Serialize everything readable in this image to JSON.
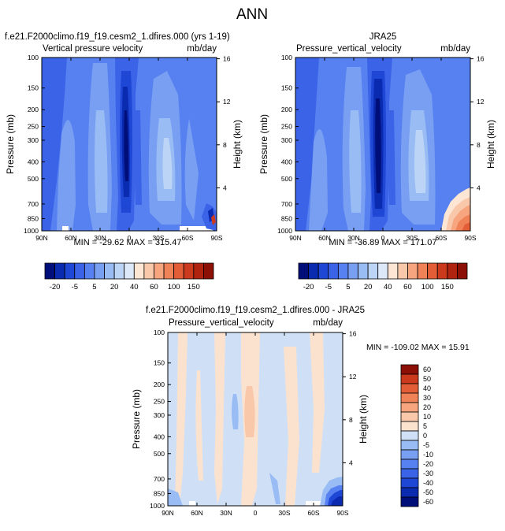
{
  "page_title": "ANN",
  "panels": {
    "p1": {
      "case_title": "f.e21.F2000climo.f19_f19.cesm2_1.dfires.000 (yrs 1-19)",
      "left_label": "Vertical pressure velocity",
      "units": "mb/day",
      "stats": "MIN = -29.62   MAX = 315.47"
    },
    "p2": {
      "case_title": "JRA25",
      "left_label": "Pressure_vertical_velocity",
      "units": "mb/day",
      "stats": "MIN = -36.89   MAX = 171.07"
    },
    "p3": {
      "case_title": "f.e21.F2000climo.f19_f19.cesm2_1.dfires.000 - JRA25",
      "left_label": "Pressure_vertical_velocity",
      "units": "mb/day",
      "stats": "MIN = -109.02   MAX =  15.91"
    }
  },
  "axis": {
    "ylabel": "Pressure (mb)",
    "y2label": "Height (km)"
  },
  "colorbars": {
    "top_labels": [
      "-20",
      "-5",
      "5",
      "20",
      "40",
      "60",
      "100",
      "150"
    ],
    "diff_labels": [
      "60",
      "50",
      "40",
      "30",
      "20",
      "10",
      "5",
      "0",
      "-5",
      "-10",
      "-20",
      "-30",
      "-40",
      "-50",
      "-60"
    ]
  },
  "chart_data": [
    {
      "type": "heatmap",
      "title": "Vertical pressure velocity",
      "xlabel": "",
      "ylabel": "Pressure (mb)",
      "y2label": "Height (km)",
      "x_ticks": [
        "90N",
        "60N",
        "30N",
        "0",
        "30S",
        "60S",
        "90S"
      ],
      "y_ticks": [
        "100",
        "150",
        "200",
        "250",
        "300",
        "400",
        "500",
        "700",
        "850",
        "1000"
      ],
      "y2_ticks": [
        "16",
        "12",
        "8",
        "4"
      ],
      "ylim": [
        1000,
        100
      ],
      "xlim": [
        90,
        -90
      ],
      "levels": [
        -25,
        -20,
        -15,
        -10,
        -5,
        0,
        5,
        10,
        15,
        20,
        30,
        40,
        50,
        60,
        80,
        100,
        125,
        150
      ],
      "min": -29.62,
      "max": 315.47,
      "units": "mb/day"
    },
    {
      "type": "heatmap",
      "title": "Pressure_vertical_velocity",
      "xlabel": "",
      "ylabel": "Pressure (mb)",
      "y2label": "Height (km)",
      "x_ticks": [
        "90N",
        "60N",
        "30N",
        "0",
        "30S",
        "60S",
        "90S"
      ],
      "y_ticks": [
        "100",
        "150",
        "200",
        "250",
        "300",
        "400",
        "500",
        "700",
        "850",
        "1000"
      ],
      "y2_ticks": [
        "16",
        "12",
        "8",
        "4"
      ],
      "ylim": [
        1000,
        100
      ],
      "xlim": [
        90,
        -90
      ],
      "levels": [
        -25,
        -20,
        -15,
        -10,
        -5,
        0,
        5,
        10,
        15,
        20,
        30,
        40,
        50,
        60,
        80,
        100,
        125,
        150
      ],
      "min": -36.89,
      "max": 171.07,
      "units": "mb/day"
    },
    {
      "type": "heatmap",
      "title": "Pressure_vertical_velocity",
      "xlabel": "",
      "ylabel": "Pressure (mb)",
      "y2label": "Height (km)",
      "x_ticks": [
        "90N",
        "60N",
        "30N",
        "0",
        "30S",
        "60S",
        "90S"
      ],
      "y_ticks": [
        "100",
        "150",
        "200",
        "250",
        "300",
        "400",
        "500",
        "700",
        "850",
        "1000"
      ],
      "y2_ticks": [
        "16",
        "12",
        "8",
        "4"
      ],
      "ylim": [
        1000,
        100
      ],
      "xlim": [
        90,
        -90
      ],
      "levels": [
        -60,
        -50,
        -40,
        -30,
        -20,
        -10,
        -5,
        0,
        5,
        10,
        20,
        30,
        40,
        50,
        60
      ],
      "min": -109.02,
      "max": 15.91,
      "units": "mb/day"
    }
  ],
  "colors": {
    "top_scale": [
      "#000e7a",
      "#0a2bb0",
      "#1e47d6",
      "#3a63e8",
      "#5781f0",
      "#789ff2",
      "#99bcf4",
      "#bcd5f6",
      "#dde9f8",
      "#fde6d4",
      "#f9c7a9",
      "#f6a57e",
      "#f08258",
      "#e35d36",
      "#cc3a1e",
      "#b0230e",
      "#8c1005"
    ],
    "diff_scale": [
      "#000e7a",
      "#0a2bb0",
      "#1e47d6",
      "#3a63e8",
      "#5781f0",
      "#789ff2",
      "#99bcf4",
      "#cfe0f6",
      "#fbe2cf",
      "#f9c7a9",
      "#f6a57e",
      "#f08258",
      "#e35d36",
      "#cc3a1e",
      "#8c1005"
    ]
  }
}
